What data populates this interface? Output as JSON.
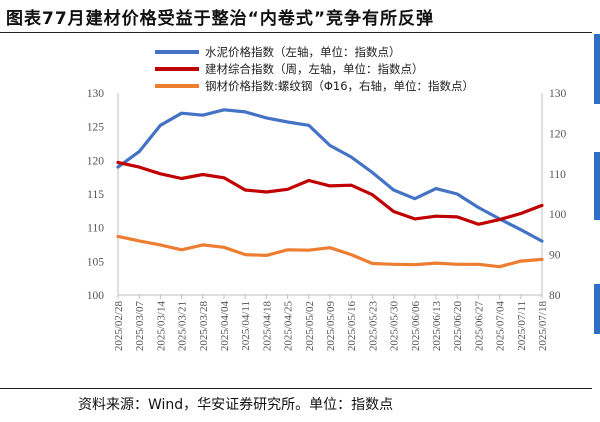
{
  "header": {
    "title": "图表77月建材价格受益于整治“内卷式”竞争有所反弹"
  },
  "footer": {
    "source": "资料来源：Wind，华安证券研究所。单位：指数点"
  },
  "colors": {
    "cement": "#4472c4",
    "building": "#c00000",
    "steel": "#ed7d31",
    "axis": "#bfbfbf",
    "edge_accent": "#2f6fc4"
  },
  "chart_data": {
    "type": "line",
    "title": "",
    "x": [
      "2025/02/28",
      "2025/03/07",
      "2025/03/14",
      "2025/03/21",
      "2025/03/28",
      "2025/04/04",
      "2025/04/11",
      "2025/04/18",
      "2025/04/25",
      "2025/05/02",
      "2025/05/09",
      "2025/05/16",
      "2025/05/23",
      "2025/05/30",
      "2025/06/06",
      "2025/06/13",
      "2025/06/20",
      "2025/06/27",
      "2025/07/04",
      "2025/07/11",
      "2025/07/18"
    ],
    "left_axis": {
      "ylim": [
        100,
        130
      ],
      "ticks": [
        "100",
        "105",
        "110",
        "115",
        "120",
        "125",
        "130"
      ]
    },
    "right_axis": {
      "ylim": [
        80,
        130
      ],
      "ticks": [
        "80",
        "90",
        "100",
        "110",
        "120",
        "130"
      ]
    },
    "legend_position": "top",
    "grid": false,
    "series": [
      {
        "name": "水泥价格指数（左轴，单位：指数点）",
        "axis": "left",
        "color": "#4472c4",
        "values": [
          119.0,
          121.3,
          125.2,
          127.0,
          126.7,
          127.5,
          127.2,
          126.3,
          125.7,
          125.2,
          122.2,
          120.5,
          118.2,
          115.6,
          114.3,
          115.8,
          115.0,
          113.0,
          111.3,
          109.7,
          108.0
        ]
      },
      {
        "name": "建材综合指数（周，左轴，单位：指数点）",
        "axis": "left",
        "color": "#c00000",
        "values": [
          119.7,
          119.0,
          118.0,
          117.3,
          117.9,
          117.4,
          115.6,
          115.3,
          115.7,
          117.0,
          116.2,
          116.3,
          114.9,
          112.4,
          111.3,
          111.7,
          111.6,
          110.5,
          111.2,
          112.1,
          113.3
        ]
      },
      {
        "name": "钢材价格指数:螺纹钢（Φ16，右轴，单位：指数点）",
        "axis": "right",
        "color": "#ed7d31",
        "values": [
          94.5,
          93.4,
          92.4,
          91.2,
          92.4,
          91.8,
          90.0,
          89.8,
          91.2,
          91.1,
          91.7,
          90.0,
          87.8,
          87.6,
          87.5,
          87.9,
          87.6,
          87.6,
          87.0,
          88.4,
          88.8
        ]
      }
    ]
  }
}
